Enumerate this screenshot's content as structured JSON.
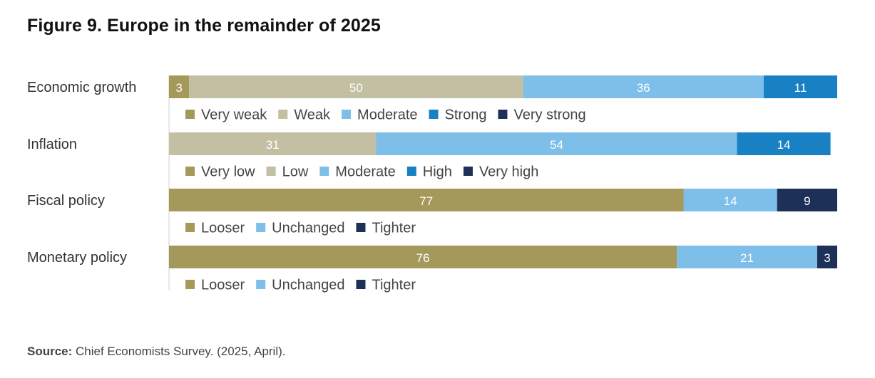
{
  "title": "Figure 9. Europe in the remainder of 2025",
  "source": {
    "label": "Source:",
    "text": " Chief Economists Survey. (2025, April)."
  },
  "colors": {
    "very_low": "#a4985b",
    "low": "#c2bfa2",
    "moderate": "#7dbfe9",
    "high": "#1a80c4",
    "very_high": "#1d3057"
  },
  "chart_data": {
    "type": "bar",
    "orientation": "horizontal",
    "stacked": true,
    "percent": true,
    "xlim": [
      0,
      100
    ],
    "rows": [
      {
        "label": "Economic growth",
        "segments": [
          {
            "name": "Very weak",
            "value": 3,
            "color": "#a4985b"
          },
          {
            "name": "Weak",
            "value": 50,
            "color": "#c2bfa2"
          },
          {
            "name": "Moderate",
            "value": 36,
            "color": "#7dbfe9"
          },
          {
            "name": "Strong",
            "value": 11,
            "color": "#1a80c4"
          },
          {
            "name": "Very strong",
            "value": 0,
            "color": "#1d3057"
          }
        ]
      },
      {
        "label": "Inflation",
        "segments": [
          {
            "name": "Very low",
            "value": 0,
            "color": "#a4985b"
          },
          {
            "name": "Low",
            "value": 31,
            "color": "#c2bfa2"
          },
          {
            "name": "Moderate",
            "value": 54,
            "color": "#7dbfe9"
          },
          {
            "name": "High",
            "value": 14,
            "color": "#1a80c4"
          },
          {
            "name": "Very high",
            "value": 0,
            "color": "#1d3057"
          }
        ]
      },
      {
        "label": "Fiscal policy",
        "segments": [
          {
            "name": "Looser",
            "value": 77,
            "color": "#a4985b"
          },
          {
            "name": "Unchanged",
            "value": 14,
            "color": "#7dbfe9"
          },
          {
            "name": "Tighter",
            "value": 9,
            "color": "#1d3057"
          }
        ]
      },
      {
        "label": "Monetary policy",
        "segments": [
          {
            "name": "Looser",
            "value": 76,
            "color": "#a4985b"
          },
          {
            "name": "Unchanged",
            "value": 21,
            "color": "#7dbfe9"
          },
          {
            "name": "Tighter",
            "value": 3,
            "color": "#1d3057"
          }
        ]
      }
    ]
  }
}
